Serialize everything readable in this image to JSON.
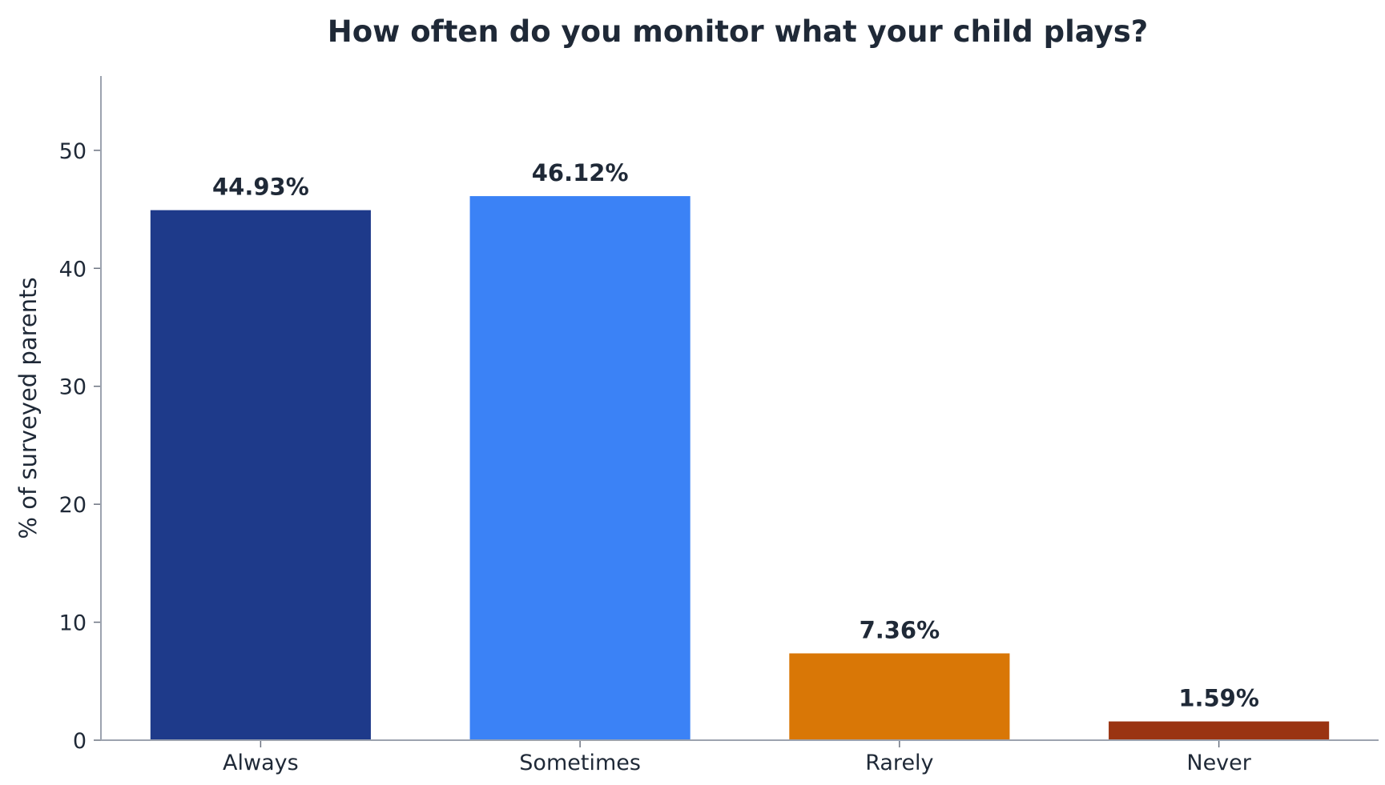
{
  "chart_data": {
    "type": "bar",
    "title": "How often do you monitor what your child plays?",
    "xlabel": "",
    "ylabel": "% of surveyed parents",
    "categories": [
      "Always",
      "Sometimes",
      "Rarely",
      "Never"
    ],
    "values": [
      44.93,
      46.12,
      7.36,
      1.59
    ],
    "value_labels": [
      "44.93%",
      "46.12%",
      "7.36%",
      "1.59%"
    ],
    "colors": [
      "#1e3a8a",
      "#3b82f6",
      "#d97706",
      "#9a3412"
    ],
    "ylim": [
      0,
      56.3
    ],
    "yticks": [
      0,
      10,
      20,
      30,
      40,
      50
    ],
    "grid": false,
    "legend": "none"
  }
}
